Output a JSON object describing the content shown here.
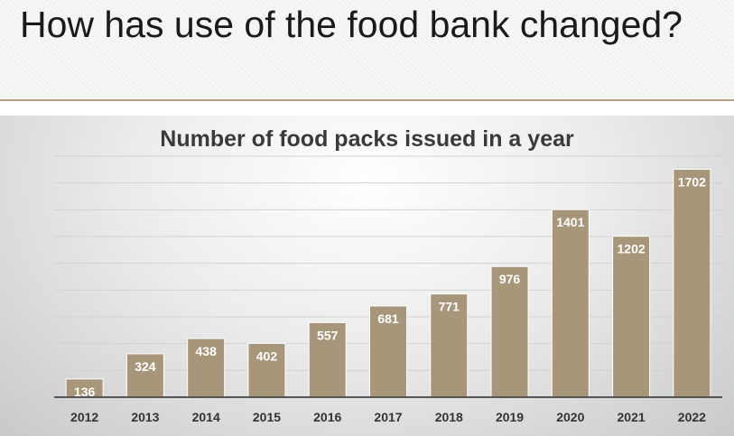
{
  "slide": {
    "title": "How has use of the food bank changed?"
  },
  "colors": {
    "bar": "#a8967a",
    "bar_stroke": "#ffffff",
    "gridline": "#d2d2d2",
    "axis": "#555555",
    "label_text": "#ffffff",
    "tick_text": "#333333"
  },
  "chart_data": {
    "type": "bar",
    "title": "Number of food packs issued in a year",
    "xlabel": "",
    "ylabel": "",
    "categories": [
      "2012",
      "2013",
      "2014",
      "2015",
      "2016",
      "2017",
      "2018",
      "2019",
      "2020",
      "2021",
      "2022"
    ],
    "values": [
      136,
      324,
      438,
      402,
      557,
      681,
      771,
      976,
      1401,
      1202,
      1702
    ],
    "data_labels": [
      "136",
      "324",
      "438",
      "402",
      "557",
      "681",
      "771",
      "976",
      "1401",
      "1202",
      "1702"
    ],
    "ylim": [
      0,
      1800
    ],
    "y_gridline_step": 200,
    "y_tick_labels_shown": false,
    "grid": true
  }
}
